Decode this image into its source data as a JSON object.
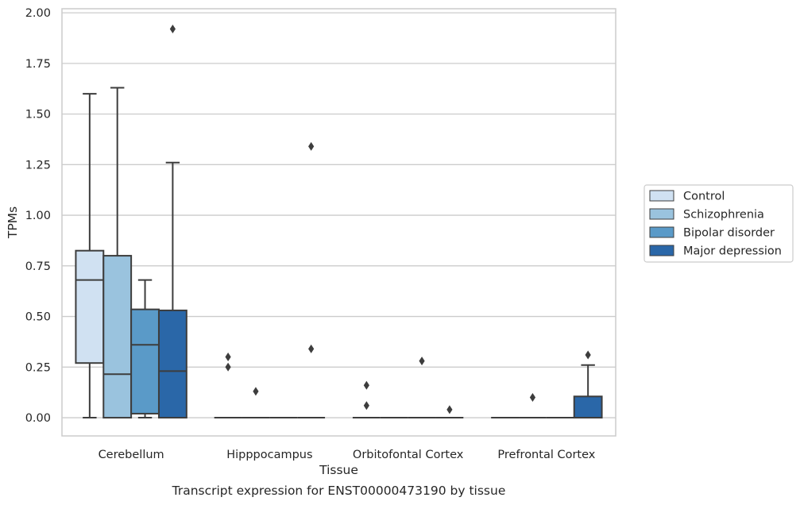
{
  "chart_data": {
    "type": "box",
    "title": "",
    "caption": "Transcript expression for ENST00000473190 by tissue",
    "xlabel": "Tissue",
    "ylabel": "TPMs",
    "ylim": [
      -0.09,
      2.02
    ],
    "yticks": [
      0.0,
      0.25,
      0.5,
      0.75,
      1.0,
      1.25,
      1.5,
      1.75,
      2.0
    ],
    "ytick_labels": [
      "0.00",
      "0.25",
      "0.50",
      "0.75",
      "1.00",
      "1.25",
      "1.50",
      "1.75",
      "2.00"
    ],
    "grid": "horizontal",
    "legend_position": "right",
    "categories": [
      "Cerebellum",
      "Hipppocampus",
      "Orbitofontal Cortex",
      "Prefrontal Cortex"
    ],
    "series": [
      {
        "name": "Control",
        "color": "#d0e1f2",
        "boxes": [
          {
            "q1": 0.27,
            "median": 0.68,
            "q3": 0.825,
            "whisker_low": 0.0,
            "whisker_high": 1.6,
            "outliers": []
          },
          {
            "q1": 0.0,
            "median": 0.0,
            "q3": 0.0,
            "whisker_low": 0.0,
            "whisker_high": 0.0,
            "outliers": [
              0.25,
              0.3
            ]
          },
          {
            "q1": 0.0,
            "median": 0.0,
            "q3": 0.0,
            "whisker_low": 0.0,
            "whisker_high": 0.0,
            "outliers": [
              0.06,
              0.16
            ]
          },
          {
            "q1": 0.0,
            "median": 0.0,
            "q3": 0.0,
            "whisker_low": 0.0,
            "whisker_high": 0.0,
            "outliers": []
          }
        ]
      },
      {
        "name": "Schizophrenia",
        "color": "#9ac3de",
        "boxes": [
          {
            "q1": 0.0,
            "median": 0.215,
            "q3": 0.8,
            "whisker_low": 0.0,
            "whisker_high": 1.63,
            "outliers": []
          },
          {
            "q1": 0.0,
            "median": 0.0,
            "q3": 0.0,
            "whisker_low": 0.0,
            "whisker_high": 0.0,
            "outliers": [
              0.13
            ]
          },
          {
            "q1": 0.0,
            "median": 0.0,
            "q3": 0.0,
            "whisker_low": 0.0,
            "whisker_high": 0.0,
            "outliers": []
          },
          {
            "q1": 0.0,
            "median": 0.0,
            "q3": 0.0,
            "whisker_low": 0.0,
            "whisker_high": 0.0,
            "outliers": [
              0.1
            ]
          }
        ]
      },
      {
        "name": "Bipolar disorder",
        "color": "#5a9ac8",
        "boxes": [
          {
            "q1": 0.02,
            "median": 0.36,
            "q3": 0.535,
            "whisker_low": 0.0,
            "whisker_high": 0.68,
            "outliers": []
          },
          {
            "q1": 0.0,
            "median": 0.0,
            "q3": 0.0,
            "whisker_low": 0.0,
            "whisker_high": 0.0,
            "outliers": []
          },
          {
            "q1": 0.0,
            "median": 0.0,
            "q3": 0.0,
            "whisker_low": 0.0,
            "whisker_high": 0.0,
            "outliers": [
              0.28
            ]
          },
          {
            "q1": 0.0,
            "median": 0.0,
            "q3": 0.0,
            "whisker_low": 0.0,
            "whisker_high": 0.0,
            "outliers": []
          }
        ]
      },
      {
        "name": "Major depression",
        "color": "#2a67a8",
        "boxes": [
          {
            "q1": 0.0,
            "median": 0.23,
            "q3": 0.53,
            "whisker_low": 0.0,
            "whisker_high": 1.26,
            "outliers": [
              1.92
            ]
          },
          {
            "q1": 0.0,
            "median": 0.0,
            "q3": 0.0,
            "whisker_low": 0.0,
            "whisker_high": 0.0,
            "outliers": [
              0.34,
              1.34
            ]
          },
          {
            "q1": 0.0,
            "median": 0.0,
            "q3": 0.0,
            "whisker_low": 0.0,
            "whisker_high": 0.0,
            "outliers": [
              0.04
            ]
          },
          {
            "q1": 0.0,
            "median": 0.0,
            "q3": 0.105,
            "whisker_low": 0.0,
            "whisker_high": 0.26,
            "outliers": [
              0.31
            ]
          }
        ]
      }
    ]
  }
}
